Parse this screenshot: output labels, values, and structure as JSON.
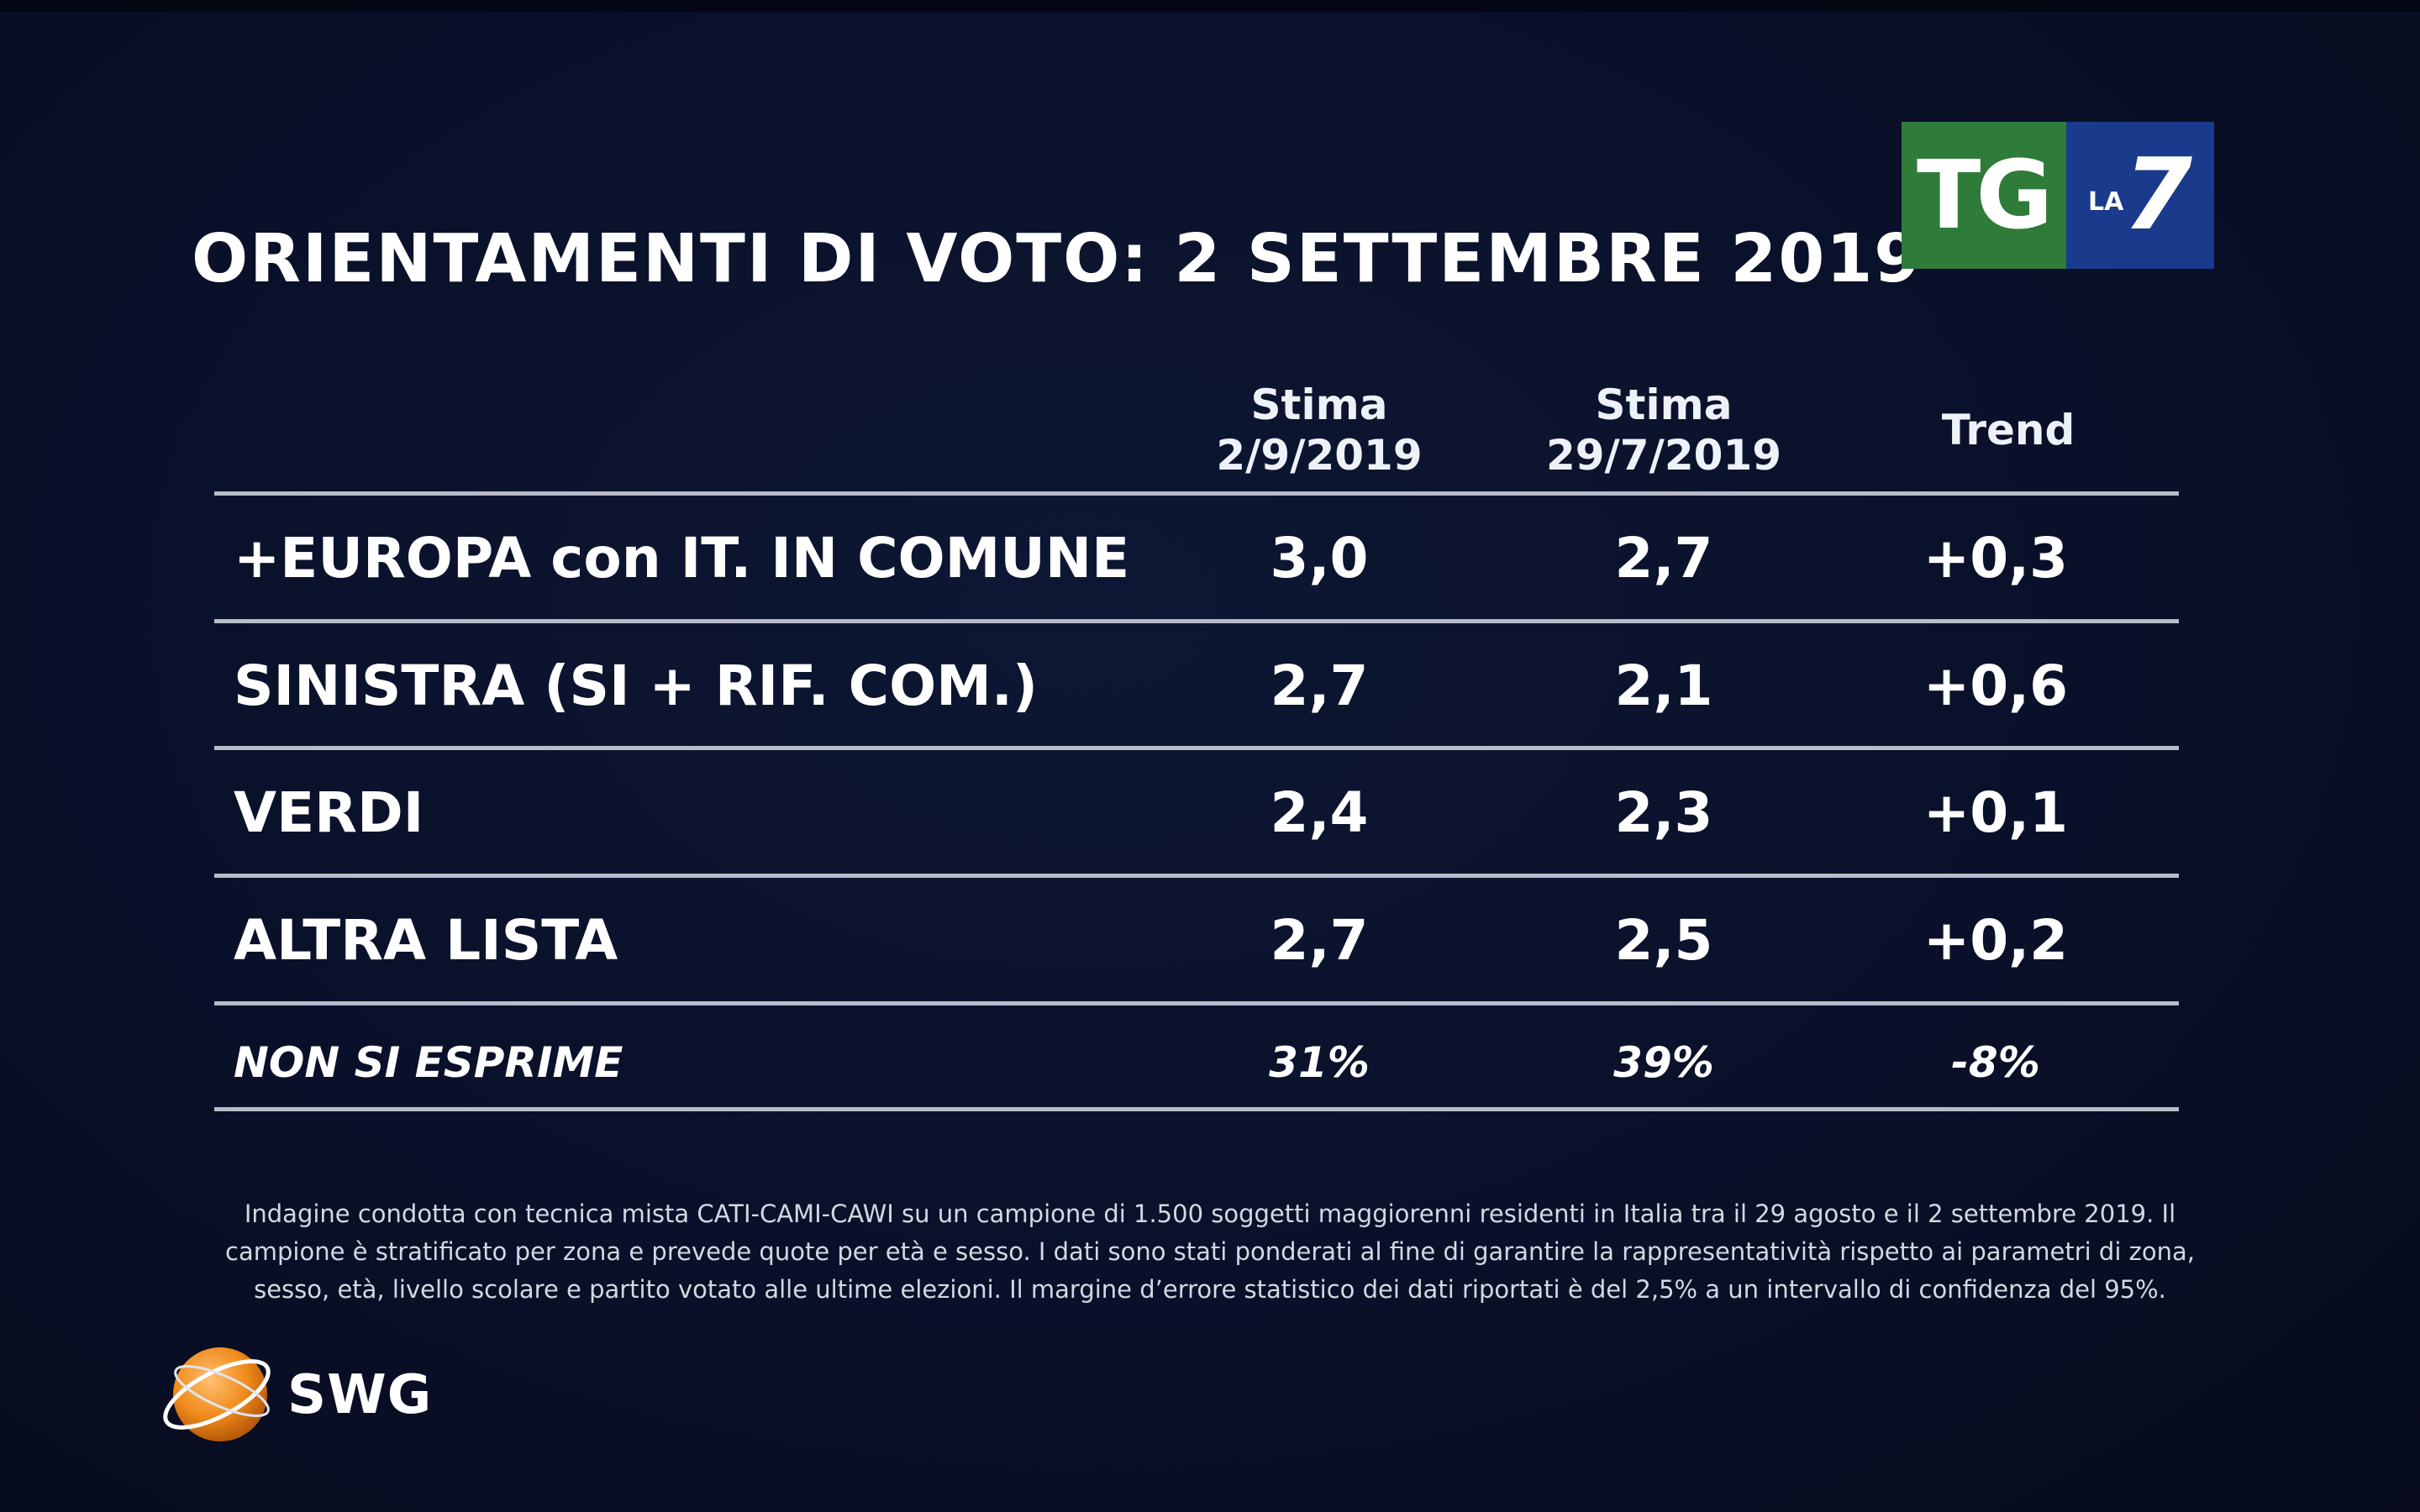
{
  "title": "ORIENTAMENTI DI VOTO: 2 SETTEMBRE 2019",
  "broadcaster_logo": {
    "tg": "TG",
    "la": "LA",
    "seven": "7",
    "green": "#2f7b3a",
    "blue": "#1a3b8c"
  },
  "table": {
    "headers": [
      {
        "line1": "Stima",
        "line2": "2/9/2019"
      },
      {
        "line1": "Stima",
        "line2": "29/7/2019"
      },
      {
        "line1": "Trend",
        "line2": ""
      }
    ],
    "rows": [
      {
        "party": "+EUROPA con IT. IN COMUNE",
        "current": "3,0",
        "previous": "2,7",
        "trend": "+0,3"
      },
      {
        "party": "SINISTRA (SI + RIF. COM.)",
        "current": "2,7",
        "previous": "2,1",
        "trend": "+0,6"
      },
      {
        "party": "VERDI",
        "current": "2,4",
        "previous": "2,3",
        "trend": "+0,1"
      },
      {
        "party": "ALTRA LISTA",
        "current": "2,7",
        "previous": "2,5",
        "trend": "+0,2"
      },
      {
        "party": "NON SI ESPRIME",
        "current": "31%",
        "previous": "39%",
        "trend": "-8%"
      }
    ]
  },
  "footnote": "Indagine condotta con tecnica mista CATI-CAMI-CAWI su un campione di 1.500 soggetti maggiorenni residenti in Italia tra il 29 agosto e il  2 settembre 2019. Il campione è stratificato per zona e prevede quote per età e sesso. I dati sono stati ponderati al fine di garantire la rappresentatività rispetto ai parametri di zona, sesso, età, livello scolare e partito votato alle ultime elezioni. Il margine d’errore statistico dei dati riportati è del 2,5% a un intervallo di confidenza del 95%.",
  "pollster_logo": {
    "name": "SWG",
    "globe_color": "#f08a1c"
  },
  "colors": {
    "background": "#0a1029",
    "text": "#ffffff",
    "rule": "#b7bcc9"
  }
}
